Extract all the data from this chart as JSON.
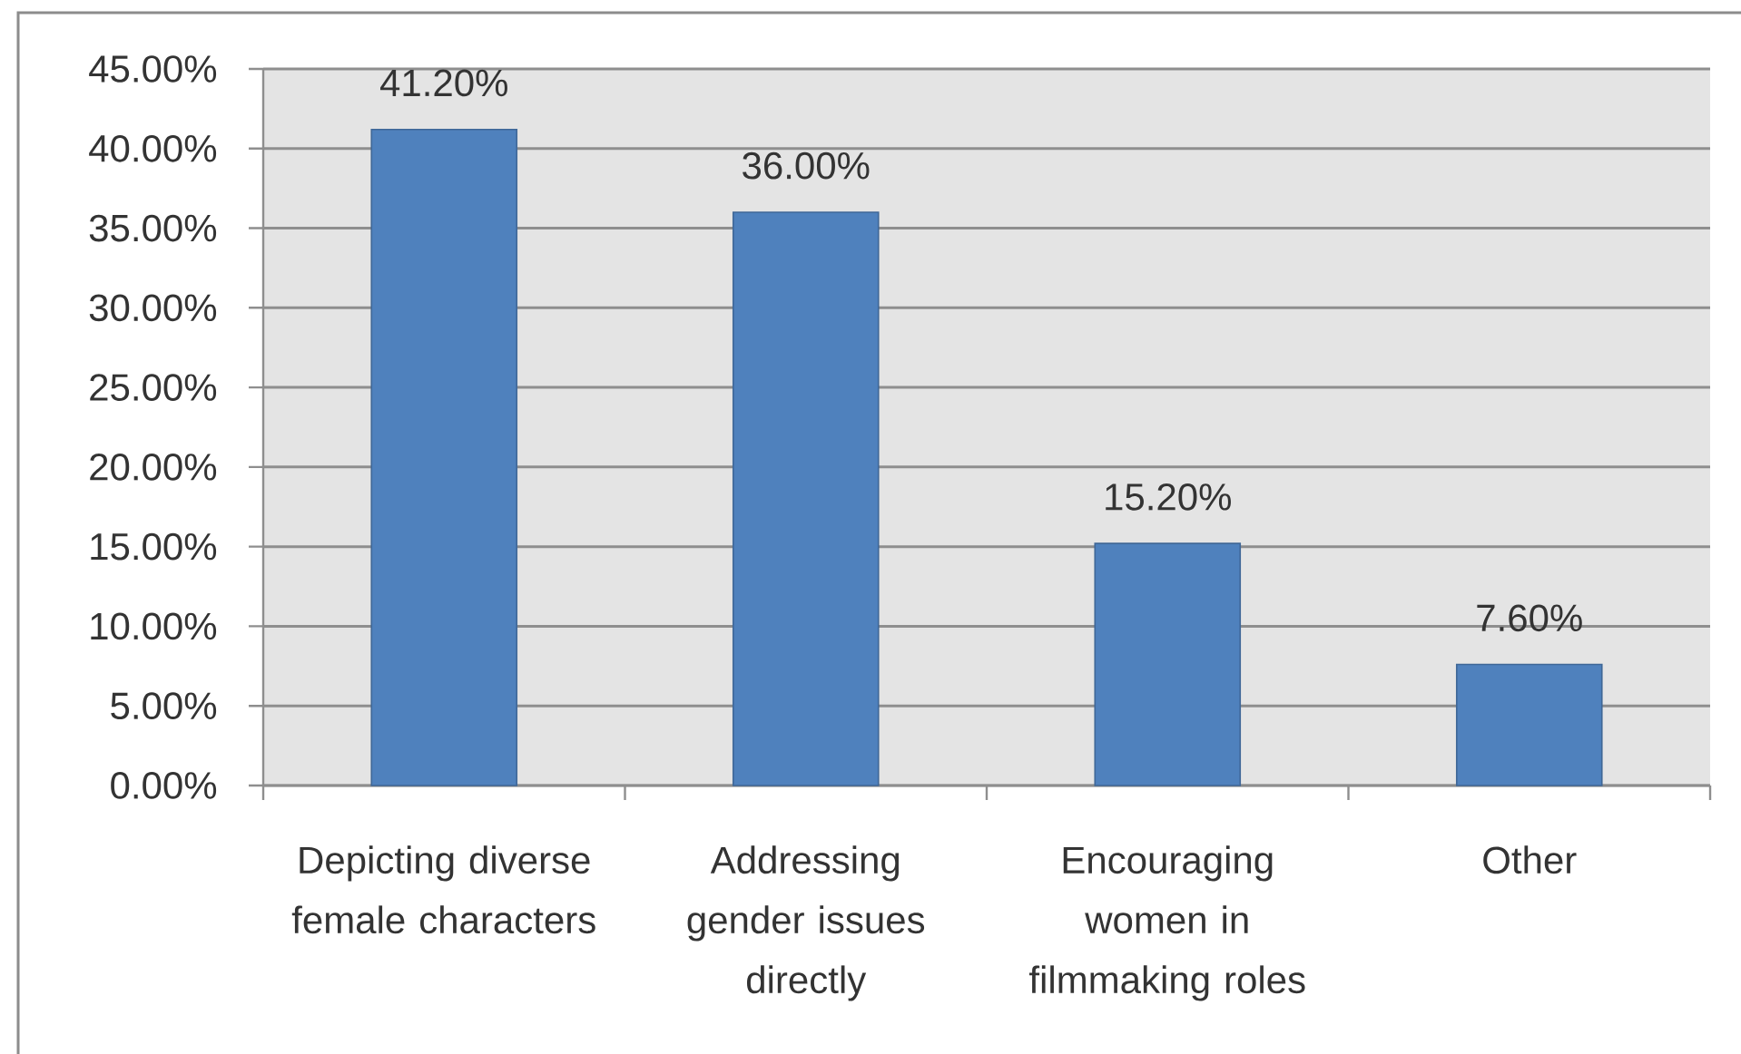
{
  "chart_data": {
    "type": "bar",
    "categories": [
      "Depicting diverse female characters",
      "Addressing gender issues directly",
      "Encouraging women in filmmaking roles",
      "Other"
    ],
    "values": [
      41.2,
      36.0,
      15.2,
      7.6
    ],
    "color": "#4f81bd",
    "value_labels": [
      "41.20%",
      "36.00%",
      "15.20%",
      "7.60%"
    ],
    "ylim": [
      0,
      45
    ],
    "yticks": [
      {
        "value": 0,
        "label": "0.00%"
      },
      {
        "value": 5,
        "label": "5.00%"
      },
      {
        "value": 10,
        "label": "10.00%"
      },
      {
        "value": 15,
        "label": "15.00%"
      },
      {
        "value": 20,
        "label": "20.00%"
      },
      {
        "value": 25,
        "label": "25.00%"
      },
      {
        "value": 30,
        "label": "30.00%"
      },
      {
        "value": 35,
        "label": "35.00%"
      },
      {
        "value": 40,
        "label": "40.00%"
      },
      {
        "value": 45,
        "label": "45.00%"
      }
    ],
    "grid": "y"
  }
}
